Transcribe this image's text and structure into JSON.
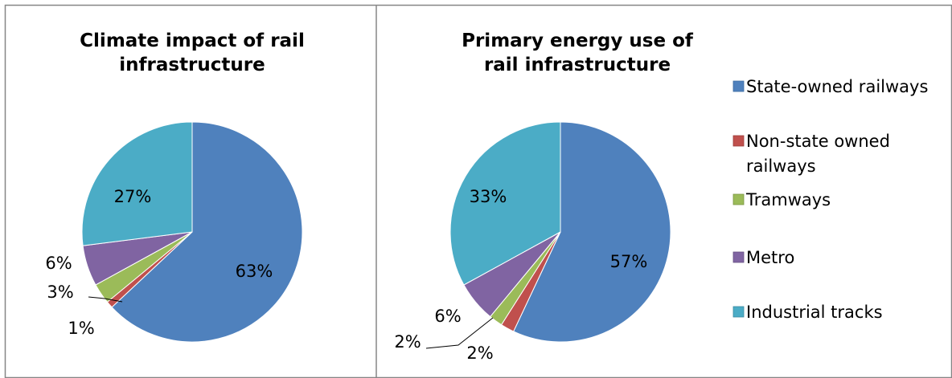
{
  "chart_data": [
    {
      "type": "pie",
      "title": [
        "Climate impact of rail",
        "infrastructure"
      ],
      "categories": [
        "State-owned railways",
        "Non-state owned railways",
        "Tramways",
        "Metro",
        "Industrial tracks"
      ],
      "values": [
        63,
        1,
        3,
        6,
        27
      ],
      "labels": [
        "63%",
        "1%",
        "3%",
        "6%",
        "27%"
      ]
    },
    {
      "type": "pie",
      "title": [
        "Primary energy  use of",
        "rail infrastructure"
      ],
      "categories": [
        "State-owned railways",
        "Non-state owned railways",
        "Tramways",
        "Metro",
        "Industrial tracks"
      ],
      "values": [
        57,
        2,
        2,
        6,
        33
      ],
      "labels": [
        "57%",
        "2%",
        "2%",
        "6%",
        "33%"
      ]
    }
  ],
  "legend": {
    "placement": "right",
    "items": [
      {
        "lines": [
          "State-owned railways"
        ],
        "color": "#4F81BD"
      },
      {
        "lines": [
          "Non-state owned",
          "railways"
        ],
        "color": "#C0504D"
      },
      {
        "lines": [
          "Tramways"
        ],
        "color": "#9BBB59"
      },
      {
        "lines": [
          "Metro"
        ],
        "color": "#8064A2"
      },
      {
        "lines": [
          "Industrial tracks"
        ],
        "color": "#4BACC6"
      }
    ]
  },
  "colors": [
    "#4F81BD",
    "#C0504D",
    "#9BBB59",
    "#8064A2",
    "#4BACC6"
  ]
}
